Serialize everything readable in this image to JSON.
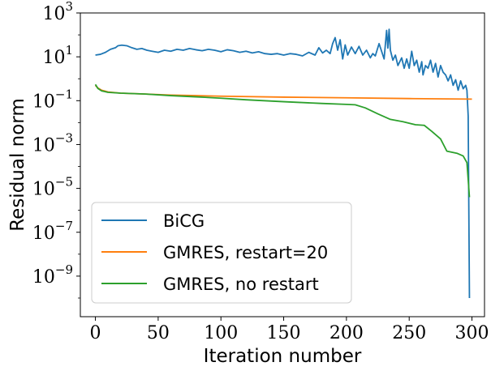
{
  "chart_data": {
    "type": "line",
    "xlabel": "Iteration number",
    "ylabel": "Residual norm",
    "xlim": [
      -12,
      310
    ],
    "ylim_log10": [
      -10.85,
      3
    ],
    "y_scale": "log",
    "x_ticks": [
      0,
      50,
      100,
      150,
      200,
      250,
      300
    ],
    "x_tick_labels": [
      "0",
      "50",
      "100",
      "150",
      "200",
      "250",
      "300"
    ],
    "y_ticks_log10": [
      3,
      1,
      -1,
      -3,
      -5,
      -7,
      -9
    ],
    "y_tick_labels": [
      {
        "base": "10",
        "exp": "3"
      },
      {
        "base": "10",
        "exp": "1"
      },
      {
        "base": "10",
        "exp": "−1"
      },
      {
        "base": "10",
        "exp": "−3"
      },
      {
        "base": "10",
        "exp": "−5"
      },
      {
        "base": "10",
        "exp": "−7"
      },
      {
        "base": "10",
        "exp": "−9"
      }
    ],
    "grid": false,
    "legend_position": "lower-left",
    "series": [
      {
        "name": "BiCG",
        "color": "#1f77b4",
        "points": [
          [
            0,
            12
          ],
          [
            4,
            13
          ],
          [
            8,
            16
          ],
          [
            12,
            22
          ],
          [
            16,
            26
          ],
          [
            18,
            32
          ],
          [
            21,
            34
          ],
          [
            25,
            32
          ],
          [
            29,
            26
          ],
          [
            33,
            22
          ],
          [
            37,
            24
          ],
          [
            41,
            20
          ],
          [
            45,
            18
          ],
          [
            50,
            16
          ],
          [
            55,
            20
          ],
          [
            60,
            18
          ],
          [
            65,
            22
          ],
          [
            70,
            20
          ],
          [
            75,
            24
          ],
          [
            80,
            21
          ],
          [
            85,
            19
          ],
          [
            90,
            22
          ],
          [
            95,
            20
          ],
          [
            100,
            17
          ],
          [
            105,
            21
          ],
          [
            110,
            19
          ],
          [
            115,
            16
          ],
          [
            120,
            18
          ],
          [
            125,
            15
          ],
          [
            130,
            17
          ],
          [
            135,
            14
          ],
          [
            140,
            13
          ],
          [
            145,
            14
          ],
          [
            150,
            12
          ],
          [
            155,
            14
          ],
          [
            160,
            13
          ],
          [
            165,
            11
          ],
          [
            170,
            16
          ],
          [
            175,
            12
          ],
          [
            178,
            26
          ],
          [
            181,
            15
          ],
          [
            184,
            20
          ],
          [
            187,
            14
          ],
          [
            189,
            40
          ],
          [
            191,
            75
          ],
          [
            193,
            20
          ],
          [
            195,
            60
          ],
          [
            197,
            8
          ],
          [
            199,
            35
          ],
          [
            201,
            12
          ],
          [
            204,
            28
          ],
          [
            207,
            14
          ],
          [
            210,
            30
          ],
          [
            213,
            12
          ],
          [
            216,
            20
          ],
          [
            219,
            9
          ],
          [
            221,
            14
          ],
          [
            223,
            11
          ],
          [
            226,
            40
          ],
          [
            228,
            18
          ],
          [
            230,
            8
          ],
          [
            232,
            160
          ],
          [
            233,
            25
          ],
          [
            234,
            180
          ],
          [
            235,
            20
          ],
          [
            237,
            7
          ],
          [
            239,
            12
          ],
          [
            241,
            4
          ],
          [
            244,
            9
          ],
          [
            246,
            3
          ],
          [
            248,
            8
          ],
          [
            250,
            3
          ],
          [
            252,
            18
          ],
          [
            254,
            4
          ],
          [
            256,
            7
          ],
          [
            258,
            2
          ],
          [
            260,
            6
          ],
          [
            261,
            1.5
          ],
          [
            263,
            4
          ],
          [
            265,
            3
          ],
          [
            267,
            7
          ],
          [
            269,
            2
          ],
          [
            271,
            5
          ],
          [
            273,
            1.2
          ],
          [
            275,
            4
          ],
          [
            277,
            2
          ],
          [
            279,
            1.5
          ],
          [
            281,
            0.8
          ],
          [
            283,
            1.5
          ],
          [
            285,
            0.5
          ],
          [
            287,
            0.9
          ],
          [
            289,
            0.3
          ],
          [
            291,
            0.8
          ],
          [
            293,
            0.35
          ],
          [
            295,
            0.5
          ],
          [
            296,
            0.3
          ],
          [
            297,
            0.02
          ],
          [
            298,
            1e-10
          ]
        ]
      },
      {
        "name": "GMRES, restart=20",
        "color": "#ff7f0e",
        "points": [
          [
            0,
            0.5
          ],
          [
            2,
            0.38
          ],
          [
            5,
            0.3
          ],
          [
            10,
            0.25
          ],
          [
            20,
            0.22
          ],
          [
            40,
            0.2
          ],
          [
            60,
            0.18
          ],
          [
            80,
            0.17
          ],
          [
            100,
            0.16
          ],
          [
            150,
            0.145
          ],
          [
            200,
            0.135
          ],
          [
            250,
            0.125
          ],
          [
            300,
            0.118
          ]
        ]
      },
      {
        "name": "GMRES, no restart",
        "color": "#2ca02c",
        "points": [
          [
            0,
            0.55
          ],
          [
            2,
            0.36
          ],
          [
            5,
            0.28
          ],
          [
            10,
            0.24
          ],
          [
            20,
            0.22
          ],
          [
            40,
            0.2
          ],
          [
            60,
            0.17
          ],
          [
            80,
            0.15
          ],
          [
            100,
            0.13
          ],
          [
            120,
            0.11
          ],
          [
            150,
            0.09
          ],
          [
            180,
            0.075
          ],
          [
            200,
            0.068
          ],
          [
            207,
            0.065
          ],
          [
            215,
            0.047
          ],
          [
            225,
            0.025
          ],
          [
            235,
            0.014
          ],
          [
            245,
            0.011
          ],
          [
            255,
            0.008
          ],
          [
            262,
            0.0075
          ],
          [
            268,
            0.004
          ],
          [
            275,
            0.0018
          ],
          [
            280,
            0.0005
          ],
          [
            288,
            0.0004
          ],
          [
            293,
            0.0003
          ],
          [
            296,
            0.00015
          ],
          [
            297,
            2.5e-05
          ],
          [
            298,
            4e-06
          ]
        ]
      }
    ]
  }
}
